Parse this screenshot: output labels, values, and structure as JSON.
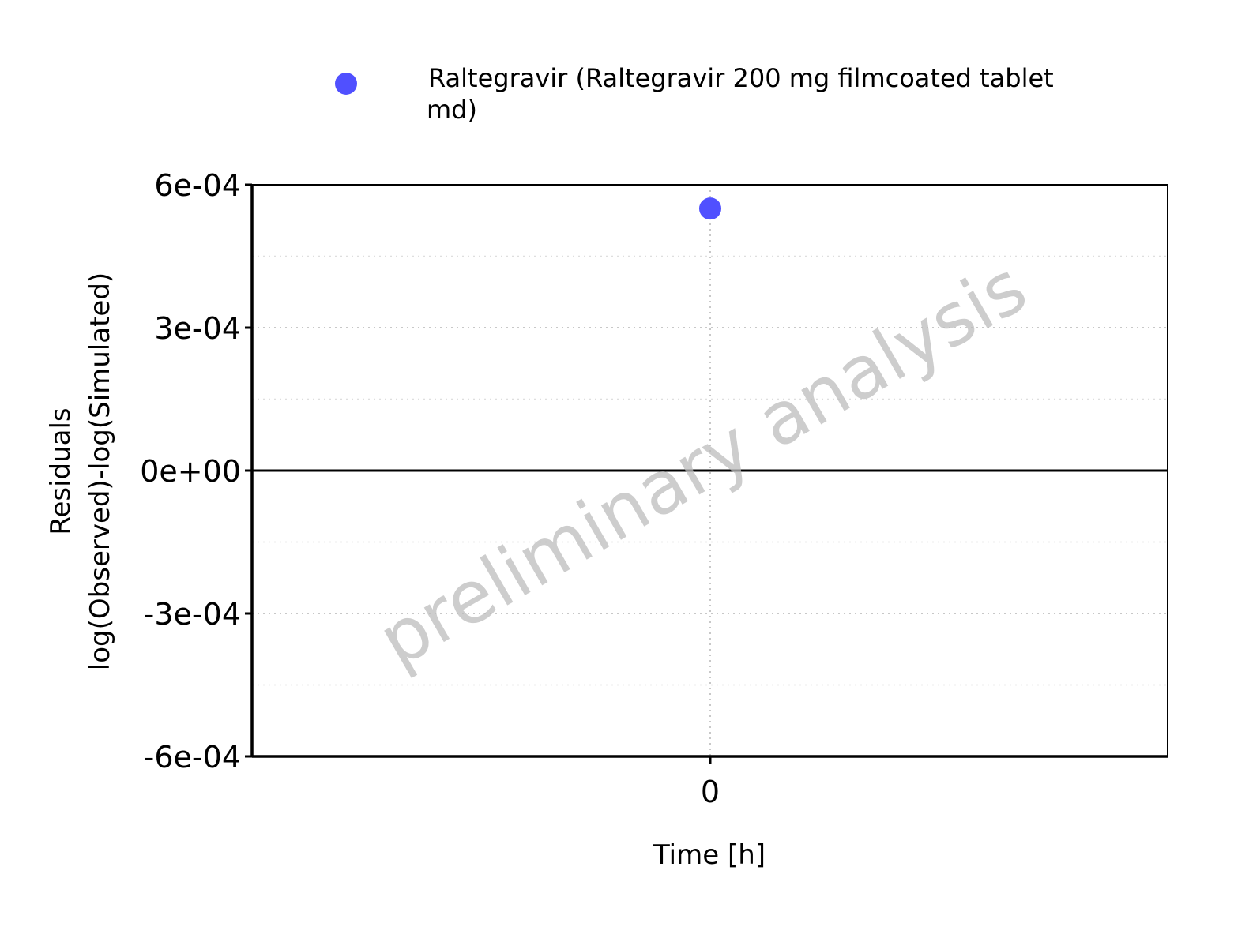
{
  "chart_data": {
    "type": "scatter",
    "xlabel": "Time [h]",
    "ylabel_lines": [
      "Residuals",
      "log(Observed)-log(Simulated)"
    ],
    "x_ticks": [
      0
    ],
    "x_tick_labels": [
      "0"
    ],
    "y_ticks": [
      0.0006,
      0.0003,
      0,
      -0.0003,
      -0.0006
    ],
    "y_tick_labels": [
      "6e-04",
      "3e-04",
      "0e+00",
      "-3e-04",
      "-6e-04"
    ],
    "ylim": [
      -0.0006,
      0.0006
    ],
    "grid": true,
    "reference_line_y": 0,
    "legend_position": "top",
    "legend_lines": [
      "Raltegravir (Raltegravir 200 mg filmcoated tablet",
      "md)"
    ],
    "watermark": "preliminary analysis",
    "series": [
      {
        "name": "Raltegravir (Raltegravir 200 mg filmcoated tablet md)",
        "color": "#5050FF",
        "points": [
          {
            "x": 0,
            "y": 0.00055
          }
        ]
      }
    ]
  }
}
